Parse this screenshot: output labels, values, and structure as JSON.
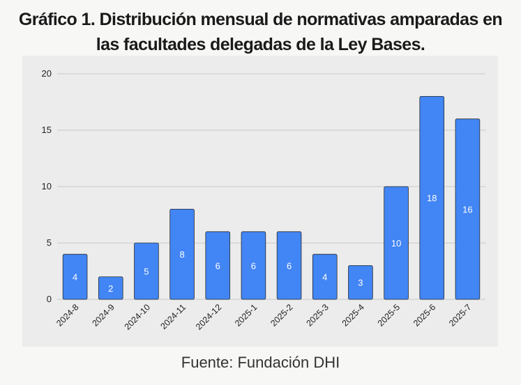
{
  "title_line1": "Gráfico 1. Distribución mensual de normativas amparadas en",
  "title_line2": "las facultades delegadas de la Ley Bases.",
  "source": "Fuente: Fundación DHI",
  "colors": {
    "bar": "#4285f4",
    "bar_stroke": "#2b2b2b",
    "grid": "#c8c8c8",
    "panel_bg": "#ececec"
  },
  "chart_data": {
    "type": "bar",
    "title": "Gráfico 1. Distribución mensual de normativas amparadas en las facultades delegadas de la Ley Bases.",
    "categories": [
      "2024-8",
      "2024-9",
      "2024-10",
      "2024-11",
      "2024-12",
      "2025-1",
      "2025-2",
      "2025-3",
      "2025-4",
      "2025-5",
      "2025-6",
      "2025-7"
    ],
    "values": [
      4,
      2,
      5,
      8,
      6,
      6,
      6,
      4,
      3,
      10,
      18,
      16
    ],
    "ylim": [
      0,
      20
    ],
    "yticks": [
      0,
      5,
      10,
      15,
      20
    ],
    "xlabel": "",
    "ylabel": "",
    "grid": true,
    "data_labels": true
  }
}
